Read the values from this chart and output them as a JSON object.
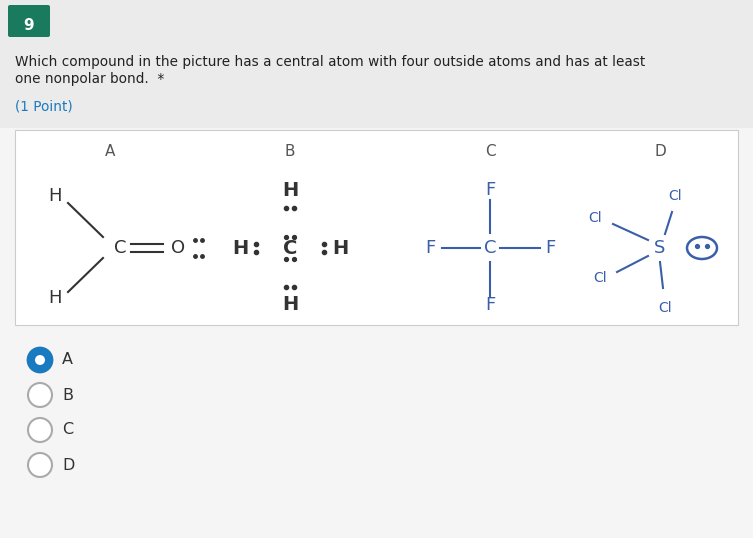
{
  "question_number": "9",
  "question_text": "Which compound in the picture has a central atom with four outside atoms and has at least\none nonpolar bond. *",
  "points_text": "(1 Point)",
  "bg_top": "#f0f0f0",
  "bg_box": "#ffffff",
  "bg_page": "#f5f5f5",
  "badge_color": "#1a7a5e",
  "label_color": "#333333",
  "option_selected": "A",
  "options": [
    "A",
    "B",
    "C",
    "D"
  ],
  "compound_labels": [
    "A",
    "B",
    "C",
    "D"
  ],
  "selected_color": "#1a7abf",
  "text_color": "#333333",
  "fig_width": 7.53,
  "fig_height": 5.38
}
